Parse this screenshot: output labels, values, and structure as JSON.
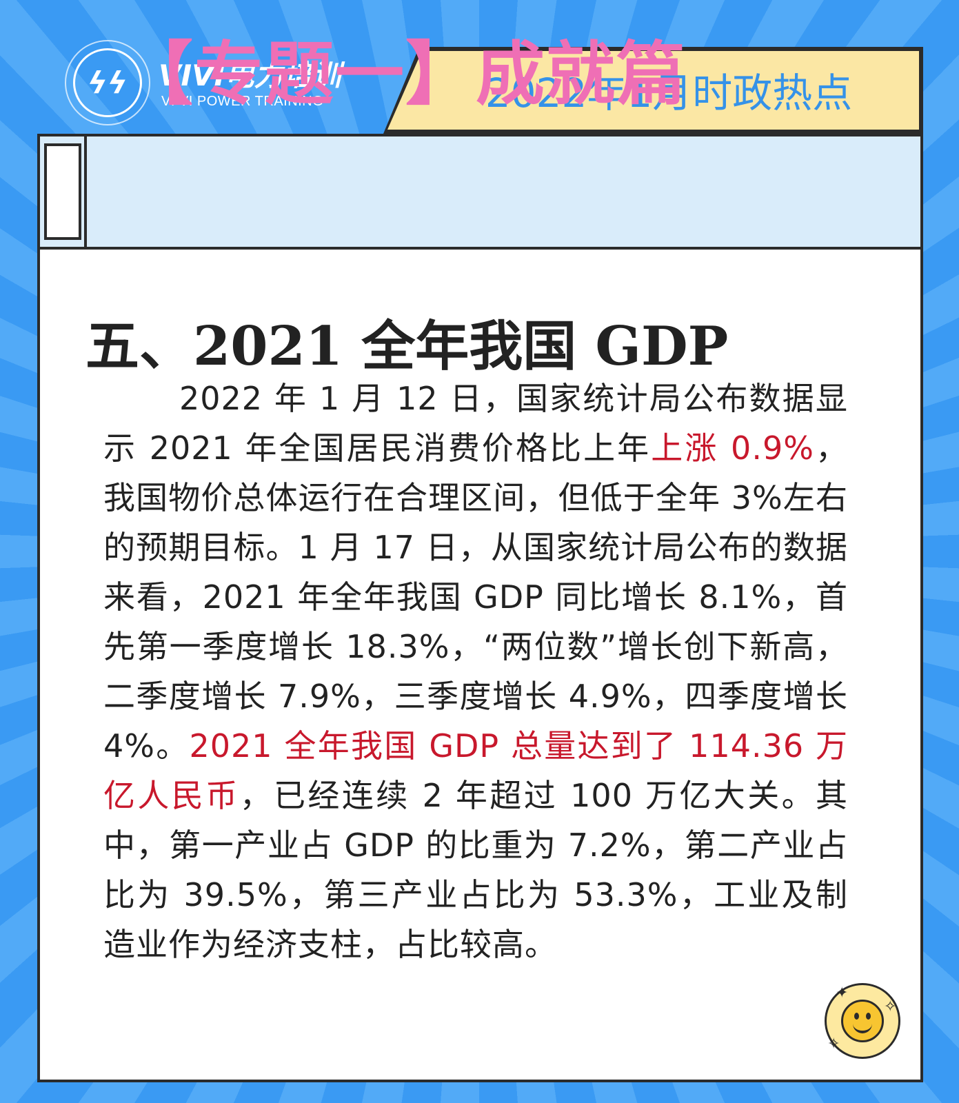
{
  "logo": {
    "mark": "ϟϟ",
    "title": "VIVI电力培训",
    "subtitle": "VI VI POWER TRAINING"
  },
  "header": {
    "tag": "2022年1月时政热点"
  },
  "banner": {
    "title": "【专题一】成就篇"
  },
  "article": {
    "heading": "五、2021 全年我国 GDP",
    "segments": [
      {
        "text": "2022 年 1 月 12 日，国家统计局公布数据显示 2021 年全国居民消费价格比上年",
        "highlight": false
      },
      {
        "text": "上涨 0.9%",
        "highlight": true
      },
      {
        "text": "，我国物价总体运行在合理区间，但低于全年 3%左右的预期目标。1 月 17 日，从国家统计局公布的数据来看，2021 年全年我国 GDP 同比增长 8.1%，首先第一季度增长 18.3%，“两位数”增长创下新高，二季度增长 7.9%，三季度增长 4.9%，四季度增长 4%。",
        "highlight": false
      },
      {
        "text": "2021 全年我国 GDP 总量达到了 114.36 万亿人民币",
        "highlight": true
      },
      {
        "text": "，已经连续 2 年超过 100 万亿大关。其中，第一产业占 GDP 的比重为 7.2%，第二产业占比为 39.5%，第三产业占比为 53.3%，工业及制造业作为经济支柱，占比较高。",
        "highlight": false
      }
    ]
  },
  "colors": {
    "background": "#3a9af3",
    "tag_bg": "#fbe7a4",
    "tag_text": "#3592e8",
    "banner_bg": "#d9ecfa",
    "banner_text": "#ef6fb5",
    "highlight": "#c8182c"
  },
  "decor": {
    "icon": "smiley-icon"
  }
}
